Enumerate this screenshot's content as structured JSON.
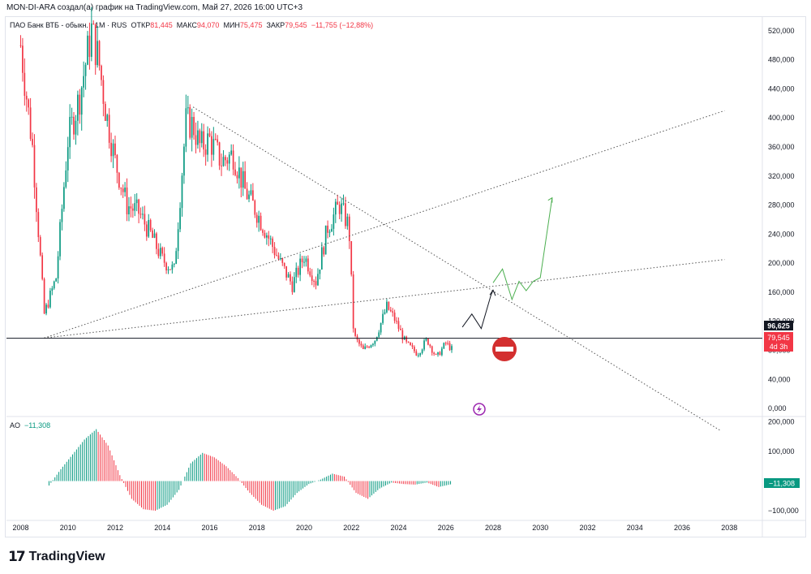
{
  "header": {
    "caption": "MON-DI-ARA создал(а) график на TradingView.com, Май 27, 2026 16:00 UTC+3"
  },
  "legend": {
    "symbol": "ПАО Банк ВТБ - обыкн. · 1M · RUS",
    "open_label": "ОТКР",
    "open_value": "81,445",
    "high_label": "МАКС",
    "high_value": "94,070",
    "low_label": "МИН",
    "low_value": "75,475",
    "close_label": "ЗАКР",
    "close_value": "79,545",
    "change": "−11,755 (−12,88%)"
  },
  "price_axis": {
    "ticks": [
      "520,000",
      "480,000",
      "440,000",
      "400,000",
      "360,000",
      "320,000",
      "280,000",
      "240,000",
      "200,000",
      "160,000",
      "120,000",
      "80,000",
      "40,000",
      "0,000"
    ],
    "level_label": "96,625",
    "last_label": "79,545",
    "countdown": "4d 3h"
  },
  "ao": {
    "label": "AO",
    "value": "−11,308",
    "ticks": [
      "200,000",
      "100,000",
      "0,000",
      "−100,000"
    ],
    "badge": "−11,308"
  },
  "time_axis": {
    "ticks": [
      "2008",
      "2010",
      "2012",
      "2014",
      "2016",
      "2018",
      "2020",
      "2022",
      "2024",
      "2026",
      "2028",
      "2030",
      "2032",
      "2034",
      "2036",
      "2038"
    ]
  },
  "footer": {
    "brand": "TradingView"
  },
  "colors": {
    "up": "#089981",
    "down": "#f23645",
    "forecast_up": "#4caf50",
    "forecast_black": "#131722"
  },
  "chart_data": [
    {
      "type": "candlestick",
      "period": "1M",
      "y_unit": "RUB",
      "ylim": [
        -10,
        540
      ],
      "xlim": [
        2007.4,
        2039.4
      ],
      "horizontal_level": 96.625,
      "series": [
        {
          "x": [
            2008.0,
            2008.5,
            2009.0,
            2009.5,
            2010.0,
            2010.5,
            2011.0,
            2011.3,
            2011.6,
            2012.0,
            2012.5,
            2013.0,
            2013.5,
            2014.0,
            2014.5,
            2015.0,
            2015.3,
            2015.6,
            2016.0,
            2016.5,
            2017.0,
            2017.5,
            2018.0,
            2018.5,
            2019.0,
            2019.5,
            2020.0,
            2020.5,
            2021.0,
            2021.5,
            2021.9,
            2022.1,
            2022.5,
            2023.0,
            2023.5,
            2023.8,
            2024.3,
            2024.8,
            2025.2,
            2025.6,
            2026.0,
            2026.3
          ],
          "close": [
            500,
            360,
            130,
            180,
            370,
            430,
            520,
            480,
            410,
            340,
            280,
            270,
            240,
            205,
            190,
            395,
            390,
            360,
            370,
            340,
            350,
            300,
            270,
            235,
            200,
            170,
            210,
            175,
            250,
            280,
            250,
            100,
            80,
            95,
            140,
            125,
            90,
            75,
            95,
            70,
            90,
            80
          ]
        }
      ],
      "trendlines": [
        {
          "name": "descending",
          "from": [
            2015.3,
            415
          ],
          "to": [
            2037.6,
            -30
          ]
        },
        {
          "name": "ascending-steep",
          "from": [
            2009.0,
            97
          ],
          "to": [
            2037.8,
            410
          ]
        },
        {
          "name": "ascending-shallow",
          "from": [
            2009.0,
            97
          ],
          "to": [
            2037.8,
            205
          ]
        }
      ],
      "forecast": {
        "black": [
          [
            2026.7,
            112
          ],
          [
            2027.1,
            130
          ],
          [
            2027.5,
            110
          ],
          [
            2027.9,
            155
          ],
          [
            2028.0,
            163
          ]
        ],
        "green": [
          [
            2028.0,
            173
          ],
          [
            2028.4,
            192
          ],
          [
            2028.8,
            150
          ],
          [
            2029.1,
            175
          ],
          [
            2029.4,
            162
          ],
          [
            2029.7,
            175
          ],
          [
            2030.0,
            180
          ],
          [
            2030.5,
            290
          ]
        ]
      }
    },
    {
      "type": "histogram",
      "name": "AO",
      "ylim": [
        -130,
        215
      ],
      "x": [
        2009.2,
        2009.7,
        2010.2,
        2010.7,
        2011.2,
        2011.7,
        2012.2,
        2012.7,
        2013.2,
        2013.7,
        2014.2,
        2014.7,
        2015.2,
        2015.7,
        2016.2,
        2016.7,
        2017.2,
        2017.7,
        2018.2,
        2018.7,
        2019.2,
        2019.7,
        2020.2,
        2020.7,
        2021.2,
        2021.7,
        2022.2,
        2022.7,
        2023.2,
        2023.7,
        2024.2,
        2024.7,
        2025.2,
        2025.7,
        2026.2
      ],
      "values": [
        -15,
        40,
        90,
        140,
        175,
        120,
        20,
        -60,
        -95,
        -100,
        -80,
        -30,
        60,
        95,
        80,
        50,
        10,
        -40,
        -80,
        -100,
        -85,
        -40,
        -10,
        5,
        25,
        15,
        -40,
        -60,
        -25,
        -5,
        -10,
        -12,
        -5,
        -20,
        -11.308
      ]
    }
  ]
}
